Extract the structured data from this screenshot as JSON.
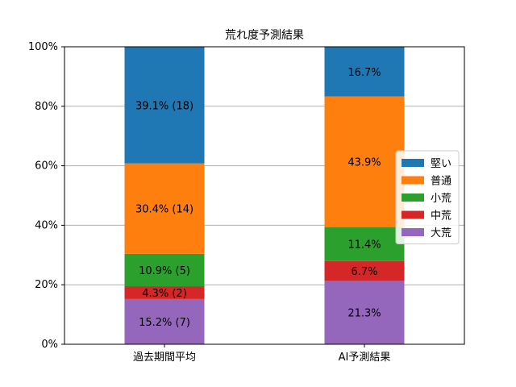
{
  "chart_data": {
    "type": "bar",
    "stacked": true,
    "title": "荒れ度予測結果",
    "categories": [
      "過去期間平均",
      "AI予測結果"
    ],
    "y_tick_labels": [
      "0%",
      "20%",
      "40%",
      "60%",
      "80%",
      "100%"
    ],
    "ylim": [
      0,
      100
    ],
    "y_unit": "%",
    "grid": true,
    "legend_position": "right",
    "series": [
      {
        "name": "大荒",
        "color": "#9467bd",
        "values": [
          15.2,
          21.3
        ],
        "labels": [
          "15.2% (7)",
          "21.3%"
        ]
      },
      {
        "name": "中荒",
        "color": "#d62728",
        "values": [
          4.3,
          6.7
        ],
        "labels": [
          "4.3% (2)",
          "6.7%"
        ]
      },
      {
        "name": "小荒",
        "color": "#2ca02c",
        "values": [
          10.9,
          11.4
        ],
        "labels": [
          "10.9% (5)",
          "11.4%"
        ]
      },
      {
        "name": "普通",
        "color": "#ff7f0e",
        "values": [
          30.4,
          43.9
        ],
        "labels": [
          "30.4% (14)",
          "43.9%"
        ]
      },
      {
        "name": "堅い",
        "color": "#1f77b4",
        "values": [
          39.1,
          16.7
        ],
        "labels": [
          "39.1% (18)",
          "16.7%"
        ]
      }
    ],
    "legend_order": [
      "堅い",
      "普通",
      "小荒",
      "中荒",
      "大荒"
    ]
  }
}
